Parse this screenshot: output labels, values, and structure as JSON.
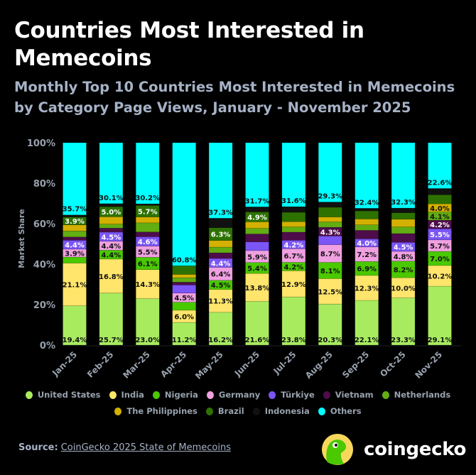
{
  "header": {
    "title": "Countries Most Interested in Memecoins",
    "subtitle": "Monthly Top 10 Countries Most Interested in Memecoins by Category Page Views, January - November 2025"
  },
  "chart_data": {
    "type": "bar",
    "stacked": true,
    "title": "Countries Most Interested in Memecoins",
    "subtitle": "Monthly Top 10 Countries Most Interested in Memecoins by Category Page Views, January - November 2025",
    "ylabel": "Market Share",
    "xlabel": "",
    "ylim": [
      0,
      100
    ],
    "yticks": [
      "0%",
      "20%",
      "40%",
      "60%",
      "80%",
      "100%"
    ],
    "grid": false,
    "legend_position": "bottom",
    "categories": [
      "Jan-25",
      "Feb-25",
      "Mar-25",
      "Apr-25",
      "May-25",
      "Jun-25",
      "Jul-25",
      "Aug-25",
      "Sep-25",
      "Oct-25",
      "Nov-25"
    ],
    "series": [
      {
        "name": "United States",
        "color": "#a8eb5f",
        "text": "#111",
        "values": [
          19.4,
          25.7,
          23.0,
          11.2,
          16.2,
          21.6,
          23.8,
          20.3,
          22.1,
          23.3,
          29.1
        ],
        "labels": [
          "19.4%",
          "25.7%",
          "23.0%",
          "11.2%",
          "16.2%",
          "21.6%",
          "23.8%",
          "20.3%",
          "22.1%",
          "23.3%",
          "29.1%"
        ]
      },
      {
        "name": "India",
        "color": "#ffe56b",
        "text": "#111",
        "values": [
          21.1,
          16.8,
          14.3,
          6.0,
          11.3,
          13.8,
          12.9,
          12.5,
          12.3,
          10.0,
          10.2
        ],
        "labels": [
          "21.1%",
          "16.8%",
          "14.3%",
          "6.0%",
          "11.3%",
          "13.8%",
          "12.9%",
          "12.5%",
          "12.3%",
          "10.0%",
          "10.2%"
        ]
      },
      {
        "name": "Nigeria",
        "color": "#4ac800",
        "text": "#111",
        "values": [
          3.0,
          4.4,
          6.1,
          4.0,
          4.5,
          5.4,
          4.2,
          8.1,
          6.9,
          8.2,
          7.0
        ],
        "labels": [
          "",
          "4.4%",
          "6.1%",
          "",
          "4.5%",
          "5.4%",
          "4.2%",
          "8.1%",
          "6.9%",
          "8.2%",
          "7.0%"
        ]
      },
      {
        "name": "Germany",
        "color": "#f0a0e0",
        "text": "#111",
        "values": [
          3.9,
          4.4,
          5.5,
          4.5,
          6.4,
          5.9,
          6.7,
          8.7,
          7.2,
          4.8,
          5.7
        ],
        "labels": [
          "3.9%",
          "4.4%",
          "5.5%",
          "4.5%",
          "6.4%",
          "5.9%",
          "6.7%",
          "8.7%",
          "7.2%",
          "4.8%",
          "5.7%"
        ]
      },
      {
        "name": "Türkiye",
        "color": "#7b55f5",
        "text": "#fff",
        "values": [
          4.4,
          4.5,
          4.6,
          4.0,
          4.4,
          4.3,
          4.2,
          4.3,
          4.0,
          4.5,
          5.5
        ],
        "labels": [
          "4.4%",
          "4.5%",
          "4.6%",
          "",
          "4.4%",
          "",
          "4.2%",
          "",
          "4.0%",
          "4.5%",
          "5.5%"
        ]
      },
      {
        "name": "Vietnam",
        "color": "#4e0d4a",
        "text": "#fff",
        "values": [
          1.6,
          2.0,
          2.4,
          1.4,
          2.8,
          3.9,
          4.0,
          4.3,
          4.2,
          4.3,
          4.2
        ],
        "labels": [
          "",
          "",
          "",
          "",
          "",
          "",
          "",
          "4.3%",
          "",
          "",
          "4.2%"
        ]
      },
      {
        "name": "Netherlands",
        "color": "#62ad12",
        "text": "#111",
        "values": [
          3.0,
          2.0,
          4.5,
          2.2,
          2.8,
          2.8,
          2.6,
          2.7,
          2.7,
          3.3,
          4.1
        ],
        "labels": [
          "",
          "",
          "",
          "",
          "",
          "",
          "",
          "",
          "",
          "",
          "4.1%"
        ]
      },
      {
        "name": "The Philippines",
        "color": "#d4b000",
        "text": "#111",
        "values": [
          3.0,
          3.6,
          2.9,
          1.6,
          3.3,
          3.2,
          2.6,
          2.4,
          2.9,
          3.8,
          4.0
        ],
        "labels": [
          "",
          "",
          "",
          "",
          "",
          "",
          "",
          "",
          "",
          "",
          "4.0%"
        ]
      },
      {
        "name": "Brazil",
        "color": "#2d7200",
        "text": "#fff",
        "values": [
          3.9,
          5.0,
          5.7,
          4.3,
          6.3,
          4.9,
          4.6,
          4.8,
          4.0,
          3.2,
          4.5
        ],
        "labels": [
          "3.9%",
          "5.0%",
          "5.7%",
          "",
          "6.3%",
          "4.9%",
          "",
          "",
          "",
          "",
          ""
        ]
      },
      {
        "name": "Indonesia",
        "color": "#111111",
        "text": "#fff",
        "values": [
          1.0,
          1.5,
          0.8,
          0.0,
          4.7,
          2.5,
          2.8,
          2.6,
          1.3,
          2.3,
          3.1
        ],
        "labels": [
          "",
          "",
          "",
          "",
          "",
          "",
          "",
          "",
          "",
          "",
          ""
        ]
      },
      {
        "name": "Others",
        "color": "#00ffff",
        "text": "#111",
        "values": [
          35.7,
          30.1,
          30.2,
          60.8,
          37.3,
          31.7,
          31.6,
          29.3,
          32.4,
          32.3,
          22.6
        ],
        "labels": [
          "35.7%",
          "30.1%",
          "30.2%",
          "60.8%",
          "37.3%",
          "31.7%",
          "31.6%",
          "29.3%",
          "32.4%",
          "32.3%",
          "22.6%"
        ]
      }
    ]
  },
  "footer": {
    "source_label": "Source:",
    "source_link": "CoinGecko 2025 State of Memecoins",
    "brand": "coingecko",
    "brand_colors": {
      "ring": "#f7d75c",
      "gecko": "#4ac800"
    }
  }
}
